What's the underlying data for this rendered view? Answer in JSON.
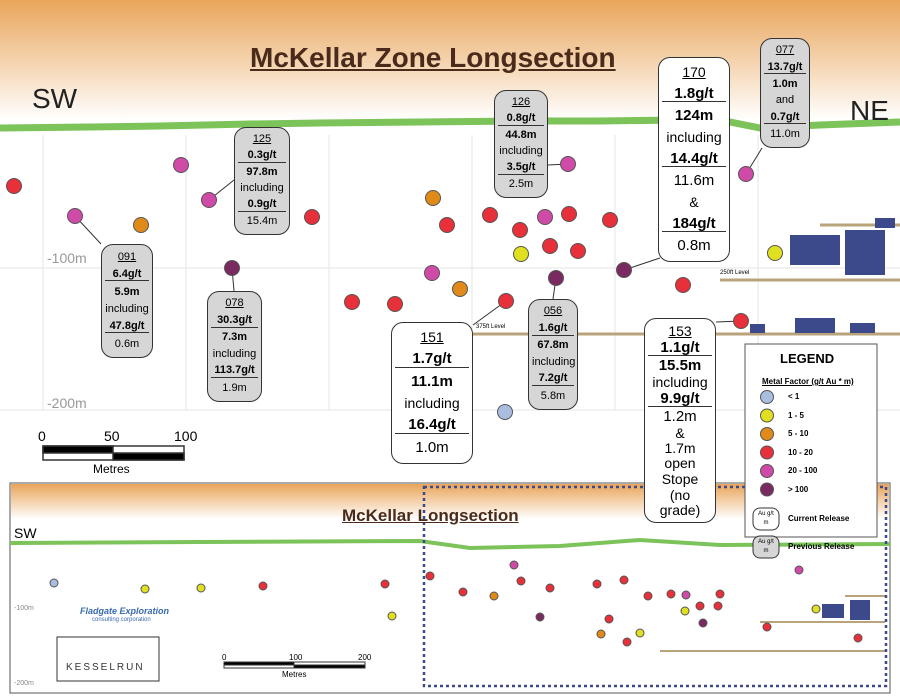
{
  "title": "McKellar Zone Longsection",
  "directions": {
    "sw": "SW",
    "ne": "NE"
  },
  "depth_labels": [
    "-100m",
    "-200m"
  ],
  "levels": [
    "250ft Level",
    "375ft Level"
  ],
  "scale": {
    "ticks": [
      "0",
      "50",
      "100"
    ],
    "unit": "Metres"
  },
  "callouts": [
    {
      "id": "077",
      "lines": [
        "13.7g/t",
        "1.0m",
        "and",
        "0.7g/t",
        "11.0m"
      ]
    },
    {
      "id": "170",
      "lines": [
        "1.8g/t",
        "124m",
        "including",
        "14.4g/t",
        "11.6m",
        "&",
        "184g/t",
        "0.8m"
      ]
    },
    {
      "id": "126",
      "lines": [
        "0.8g/t",
        "44.8m",
        "including",
        "3.5g/t",
        "2.5m"
      ]
    },
    {
      "id": "125",
      "lines": [
        "0.3g/t",
        "97.8m",
        "including",
        "0.9g/t",
        "15.4m"
      ]
    },
    {
      "id": "091",
      "lines": [
        "6.4g/t",
        "5.9m",
        "including",
        "47.8g/t",
        "0.6m"
      ]
    },
    {
      "id": "078",
      "lines": [
        "30.3g/t",
        "7.3m",
        "including",
        "113.7g/t",
        "1.9m"
      ]
    },
    {
      "id": "151",
      "lines": [
        "1.7g/t",
        "11.1m",
        "including",
        "16.4g/t",
        "1.0m"
      ]
    },
    {
      "id": "056",
      "lines": [
        "1.6g/t",
        "67.8m",
        "including",
        "7.2g/t",
        "5.8m"
      ]
    },
    {
      "id": "153",
      "lines": [
        "1.1g/t",
        "15.5m",
        "including",
        "9.9g/t",
        "1.2m",
        "&",
        "1.7m open",
        "Stope",
        "(no grade)"
      ]
    }
  ],
  "legend": {
    "title": "LEGEND",
    "subtitle": "Metal Factor (g/t Au * m)",
    "classes": [
      {
        "label": "< 1",
        "color": "#a9bde0"
      },
      {
        "label": "1 - 5",
        "color": "#e0e020"
      },
      {
        "label": "5 - 10",
        "color": "#e08a1a"
      },
      {
        "label": "10 - 20",
        "color": "#e8303a"
      },
      {
        "label": "20 - 100",
        "color": "#d04aa8"
      },
      {
        "label": "> 100",
        "color": "#7a2a60"
      }
    ],
    "symbol": [
      "Au g/t",
      "m"
    ],
    "current": "Current Release",
    "previous": "Previous Release"
  },
  "inset": {
    "title": "McKellar Longsection",
    "sw": "SW",
    "depth_labels": [
      "-100m",
      "-200m"
    ],
    "scale_ticks": [
      "0",
      "100",
      "200"
    ],
    "unit": "Metres",
    "logo1": "Fladgate Exploration",
    "logo1_sub": "consulting corporation",
    "logo2": "KESSELRUN"
  }
}
